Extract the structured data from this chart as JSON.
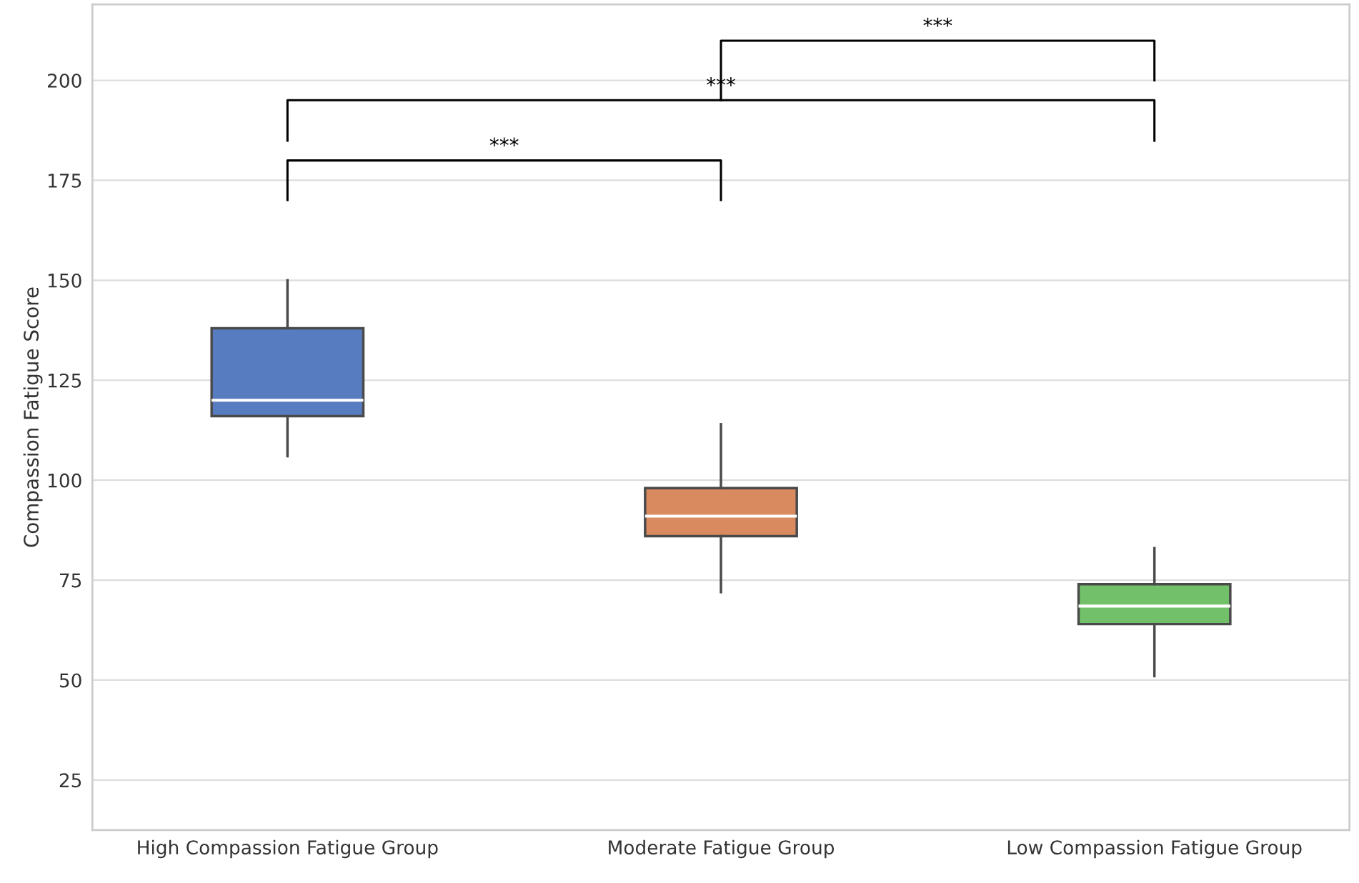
{
  "chart_data": {
    "type": "box",
    "ylabel": "Compassion Fatigue Score",
    "categories": [
      "High Compassion Fatigue Group",
      "Moderate Fatigue Group",
      "Low Compassion Fatigue Group"
    ],
    "colors": [
      "#587cc0",
      "#d98a5e",
      "#72c06a"
    ],
    "boxes": [
      {
        "low": 106,
        "q1": 116,
        "median": 120,
        "q3": 138,
        "high": 150
      },
      {
        "low": 72,
        "q1": 86,
        "median": 91,
        "q3": 98,
        "high": 114
      },
      {
        "low": 51,
        "q1": 64,
        "median": 68.5,
        "q3": 74,
        "high": 83
      }
    ],
    "ylim": [
      12.5,
      219
    ],
    "yticks": [
      25,
      50,
      75,
      100,
      125,
      150,
      175,
      200
    ],
    "grid": "y",
    "annotations": [
      "***",
      "***",
      "***"
    ]
  }
}
